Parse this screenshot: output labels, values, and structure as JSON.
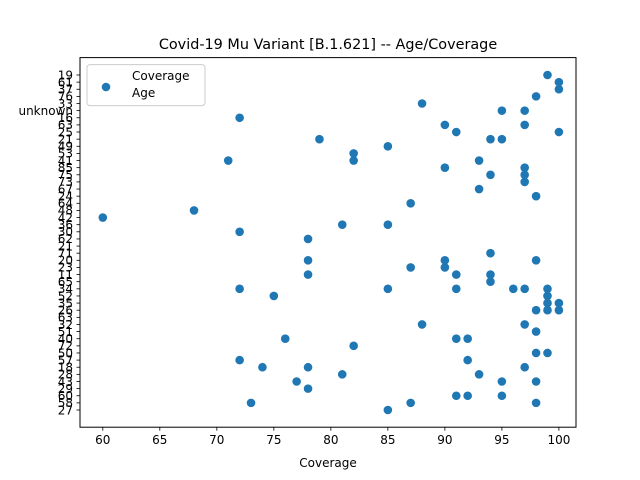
{
  "chart_data": {
    "type": "scatter",
    "title": "Covid-19 Mu Variant [B.1.621] -- Age/Coverage",
    "xlabel": "Coverage",
    "ylabel": "",
    "xlim": [
      58,
      101.5
    ],
    "xticks": [
      60,
      65,
      70,
      75,
      80,
      85,
      90,
      95,
      100
    ],
    "ytick_labels": [
      "27",
      "58",
      "60",
      "29",
      "43",
      "28",
      "18",
      "57",
      "50",
      "72",
      "40",
      "51",
      "32",
      "63",
      "26",
      "35",
      "52",
      "34",
      "65",
      "11",
      "23",
      "20",
      "71",
      "21",
      "62",
      "30",
      "36",
      "42",
      "48",
      "64",
      "24",
      "67",
      "73",
      "75",
      "85",
      "41",
      "53",
      "49",
      "21",
      "25",
      "63",
      "16",
      "unknown",
      "33",
      "76",
      "37",
      "61",
      "19"
    ],
    "grid": false,
    "legend": {
      "position": "top-left",
      "entries": [
        "Coverage",
        "Age"
      ]
    },
    "marker_color": "#1f77b4",
    "series": [
      {
        "points": [
          {
            "x": 85,
            "y": "27"
          },
          {
            "x": 73,
            "y": "58"
          },
          {
            "x": 87,
            "y": "58"
          },
          {
            "x": 98,
            "y": "58"
          },
          {
            "x": 91,
            "y": "60"
          },
          {
            "x": 92,
            "y": "60"
          },
          {
            "x": 95,
            "y": "60"
          },
          {
            "x": 78,
            "y": "29"
          },
          {
            "x": 77,
            "y": "43"
          },
          {
            "x": 95,
            "y": "43"
          },
          {
            "x": 98,
            "y": "43"
          },
          {
            "x": 81,
            "y": "28"
          },
          {
            "x": 93,
            "y": "28"
          },
          {
            "x": 74,
            "y": "18"
          },
          {
            "x": 78,
            "y": "18"
          },
          {
            "x": 97,
            "y": "18"
          },
          {
            "x": 72,
            "y": "57"
          },
          {
            "x": 92,
            "y": "57"
          },
          {
            "x": 98,
            "y": "50"
          },
          {
            "x": 99,
            "y": "50"
          },
          {
            "x": 82,
            "y": "72"
          },
          {
            "x": 76,
            "y": "40"
          },
          {
            "x": 91,
            "y": "40"
          },
          {
            "x": 92,
            "y": "40"
          },
          {
            "x": 98,
            "y": "51"
          },
          {
            "x": 88,
            "y": "32"
          },
          {
            "x": 97,
            "y": "32"
          },
          {
            "x": 90,
            "y": "63"
          },
          {
            "x": 98,
            "y": "26"
          },
          {
            "x": 99,
            "y": "26"
          },
          {
            "x": 100,
            "y": "26"
          },
          {
            "x": 99,
            "y": "35"
          },
          {
            "x": 100,
            "y": "35"
          },
          {
            "x": 75,
            "y": "52"
          },
          {
            "x": 99,
            "y": "52"
          },
          {
            "x": 72,
            "y": "34"
          },
          {
            "x": 85,
            "y": "34"
          },
          {
            "x": 91,
            "y": "34"
          },
          {
            "x": 96,
            "y": "34"
          },
          {
            "x": 97,
            "y": "34"
          },
          {
            "x": 99,
            "y": "34"
          },
          {
            "x": 94,
            "y": "65"
          },
          {
            "x": 78,
            "y": "11"
          },
          {
            "x": 91,
            "y": "11"
          },
          {
            "x": 94,
            "y": "11"
          },
          {
            "x": 87,
            "y": "23"
          },
          {
            "x": 90,
            "y": "23"
          },
          {
            "x": 78,
            "y": "20"
          },
          {
            "x": 90,
            "y": "20"
          },
          {
            "x": 98,
            "y": "20"
          },
          {
            "x": 94,
            "y": "71"
          },
          {
            "x": 79,
            "y": "21"
          },
          {
            "x": 95,
            "y": "21"
          },
          {
            "x": 78,
            "y": "62"
          },
          {
            "x": 72,
            "y": "30"
          },
          {
            "x": 81,
            "y": "36"
          },
          {
            "x": 85,
            "y": "36"
          },
          {
            "x": 60,
            "y": "42"
          },
          {
            "x": 68,
            "y": "48"
          },
          {
            "x": 87,
            "y": "64"
          },
          {
            "x": 98,
            "y": "24"
          },
          {
            "x": 93,
            "y": "67"
          },
          {
            "x": 97,
            "y": "73"
          },
          {
            "x": 94,
            "y": "75"
          },
          {
            "x": 97,
            "y": "75"
          },
          {
            "x": 90,
            "y": "85"
          },
          {
            "x": 97,
            "y": "85"
          },
          {
            "x": 71,
            "y": "41"
          },
          {
            "x": 82,
            "y": "41"
          },
          {
            "x": 93,
            "y": "41"
          },
          {
            "x": 82,
            "y": "53"
          },
          {
            "x": 85,
            "y": "49"
          },
          {
            "x": 94,
            "y": "21"
          },
          {
            "x": 91,
            "y": "25"
          },
          {
            "x": 100,
            "y": "25"
          },
          {
            "x": 97,
            "y": "63"
          },
          {
            "x": 72,
            "y": "16"
          },
          {
            "x": 95,
            "y": "unknown"
          },
          {
            "x": 97,
            "y": "unknown"
          },
          {
            "x": 88,
            "y": "33"
          },
          {
            "x": 98,
            "y": "76"
          },
          {
            "x": 100,
            "y": "37"
          },
          {
            "x": 100,
            "y": "61"
          },
          {
            "x": 99,
            "y": "19"
          }
        ]
      }
    ]
  }
}
